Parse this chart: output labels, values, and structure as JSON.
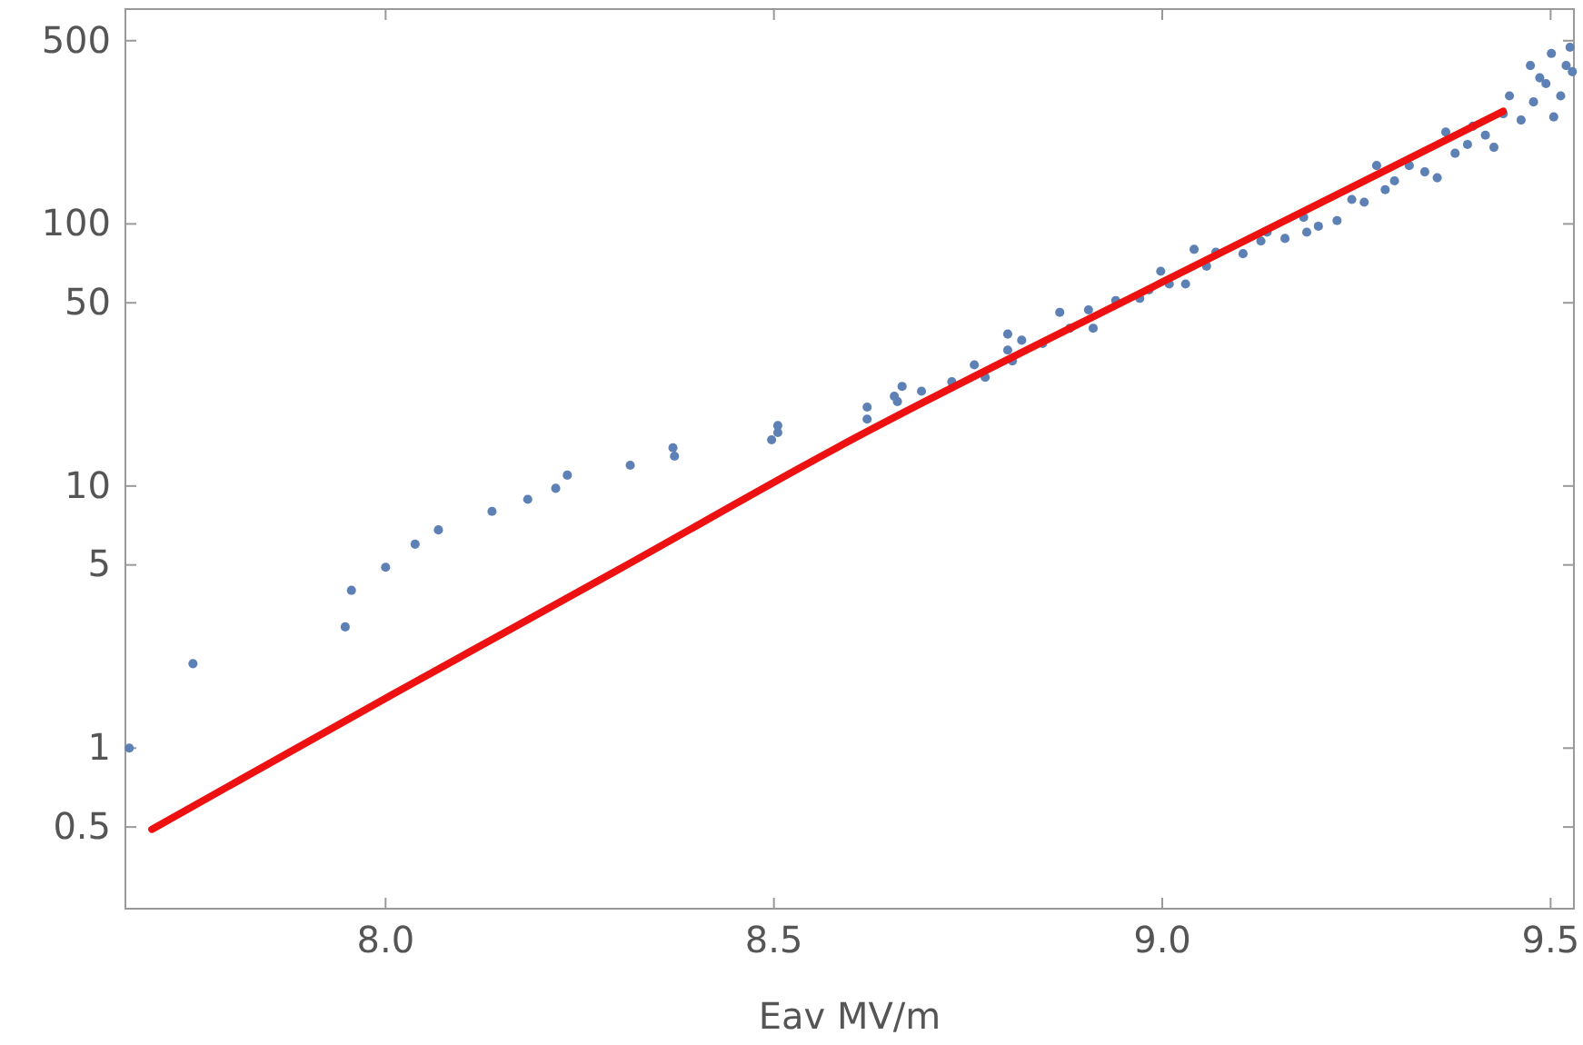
{
  "chart_data": {
    "type": "scatter",
    "xlabel": "Eav MV/m",
    "log": "y",
    "xlim": [
      7.665,
      9.53
    ],
    "ylim": [
      0.244,
      660
    ],
    "xticks": [
      {
        "value": 8,
        "label": "8.0"
      },
      {
        "value": 8.5,
        "label": "8.5"
      },
      {
        "value": 9,
        "label": "9.0"
      },
      {
        "value": 9.5,
        "label": "9.5"
      }
    ],
    "yticks": [
      0.5,
      1,
      5,
      10,
      50,
      100,
      500
    ],
    "series": [
      {
        "marker": "circle",
        "color": "#5e81b5",
        "x": [
          7.67,
          7.752,
          7.948,
          7.956,
          8.0,
          8.038,
          8.068,
          8.137,
          8.183,
          8.219,
          8.234,
          8.315,
          8.37,
          8.372,
          8.497,
          8.505,
          8.505,
          8.62,
          8.62,
          8.655,
          8.665,
          8.659,
          8.69,
          8.729,
          8.758,
          8.772,
          8.801,
          8.801,
          8.819,
          8.807,
          8.846,
          8.868,
          8.881,
          8.905,
          8.911,
          8.94,
          8.971,
          8.983,
          8.998,
          9.009,
          9.03,
          9.041,
          9.057,
          9.069,
          9.104,
          9.127,
          9.135,
          9.158,
          9.182,
          9.186,
          9.201,
          9.225,
          9.244,
          9.26,
          9.276,
          9.287,
          9.299,
          9.318,
          9.338,
          9.354,
          9.365,
          9.377,
          9.393,
          9.4,
          9.416,
          9.427,
          9.439,
          9.447,
          9.462,
          9.474,
          9.478,
          9.494,
          9.501,
          9.513,
          9.525,
          9.528,
          9.504,
          9.52,
          9.486
        ],
        "values": [
          1.0,
          2.1,
          2.9,
          4.0,
          4.9,
          6.0,
          6.8,
          8.0,
          8.9,
          9.8,
          11,
          12,
          14,
          13,
          15,
          16,
          17,
          20,
          18,
          22,
          24,
          21,
          23,
          25,
          29,
          26,
          38,
          33,
          36,
          30,
          35,
          46,
          40,
          47,
          40,
          51,
          52,
          56,
          66,
          59,
          59,
          80,
          69,
          78,
          77,
          86,
          93,
          88,
          106,
          93,
          98,
          103,
          124,
          121,
          167,
          135,
          146,
          167,
          158,
          150,
          224,
          186,
          201,
          236,
          218,
          196,
          263,
          308,
          249,
          402,
          292,
          343,
          447,
          308,
          472,
          381,
          256,
          402,
          361
        ]
      },
      {
        "type": "line",
        "color": "#ee1111",
        "x": [
          7.699,
          8.0,
          8.3,
          8.581,
          9.0,
          9.439
        ],
        "values": [
          0.49,
          1.55,
          4.8,
          14,
          60,
          269
        ]
      }
    ]
  }
}
